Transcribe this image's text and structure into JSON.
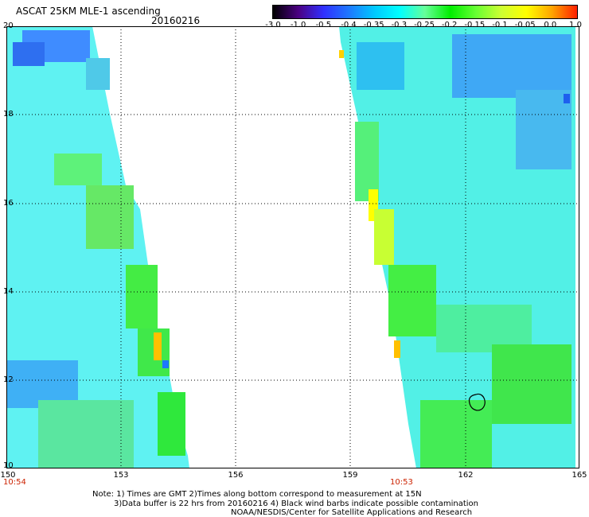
{
  "title": "ASCAT 25KM MLE-1 ascending",
  "date": "20160216",
  "colorbar": {
    "labels": [
      "-3.0",
      "-1.0",
      "-0.5",
      "-0.4",
      "-0.35",
      "-0.3",
      "-0.25",
      "-0.2",
      "-0.15",
      "-0.1",
      "-0.05",
      "0.0",
      "1.0"
    ],
    "colors": [
      "#000000",
      "#4b0082",
      "#3030ff",
      "#1e78ff",
      "#00c8ff",
      "#00ffff",
      "#66ff99",
      "#00ee00",
      "#66ff33",
      "#ccff33",
      "#ffff00",
      "#ffa500",
      "#ff2000"
    ]
  },
  "axes": {
    "lat_labels": [
      "20",
      "18",
      "16",
      "14",
      "12",
      "10"
    ],
    "lon_labels": [
      "150",
      "153",
      "156",
      "159",
      "162",
      "165"
    ],
    "lat_range": [
      10,
      20
    ],
    "lon_range": [
      150,
      165
    ],
    "grid": true
  },
  "times": {
    "left": "10:54",
    "right": "10:53"
  },
  "note": {
    "line1": "Note: 1) Times are GMT 2)Times along bottom correspond to measurement at 15N",
    "line2": "3)Data buffer is 22 hrs from 20160216 4) Black wind barbs indicate possible contamination",
    "line3": "NOAA/NESDIS/Center for Satellite Applications and Research"
  }
}
